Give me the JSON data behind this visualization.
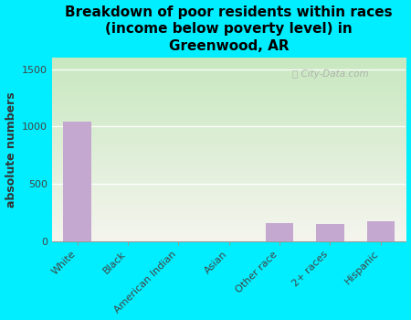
{
  "title": "Breakdown of poor residents within races\n(income below poverty level) in\nGreenwood, AR",
  "categories": [
    "White",
    "Black",
    "American Indian",
    "Asian",
    "Other race",
    "2+ races",
    "Hispanic"
  ],
  "values": [
    1040,
    0,
    0,
    0,
    155,
    150,
    175
  ],
  "bar_color": "#c4a8d0",
  "ylabel": "absolute numbers",
  "ylim": [
    0,
    1600
  ],
  "yticks": [
    0,
    500,
    1000,
    1500
  ],
  "background_outer": "#00eeff",
  "plot_bg_color_top_left": "#c8e8c0",
  "plot_bg_color_bottom_right": "#f5f5ee",
  "watermark": "City-Data.com",
  "title_fontsize": 11,
  "ylabel_fontsize": 9,
  "tick_fontsize": 8
}
